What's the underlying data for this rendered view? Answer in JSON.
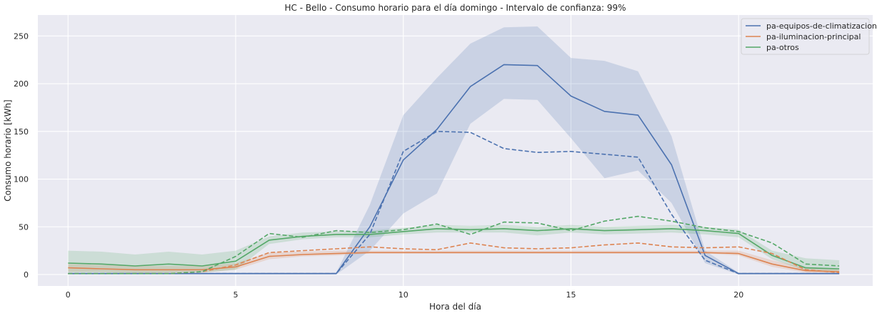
{
  "chart_data": {
    "type": "line",
    "title": "HC - Bello - Consumo horario para el día domingo - Intervalo de confianza: 99%",
    "xlabel": "Hora del día",
    "ylabel": "Consumo horario [kWh]",
    "xlim": [
      -0.9,
      24.0
    ],
    "ylim": [
      -12,
      272
    ],
    "xticks": [
      0,
      5,
      10,
      15,
      20
    ],
    "yticks": [
      0,
      50,
      100,
      150,
      200,
      250
    ],
    "grid": true,
    "legend_position": "top-right",
    "x": [
      0,
      1,
      2,
      3,
      4,
      5,
      6,
      7,
      8,
      9,
      10,
      11,
      12,
      13,
      14,
      15,
      16,
      17,
      18,
      19,
      20,
      21,
      22,
      23
    ],
    "series": [
      {
        "name": "pa-equipos-de-climatizacion",
        "color": "#4c72b0",
        "mean": [
          1,
          1,
          1,
          1,
          1,
          1,
          1,
          1,
          1,
          50,
          120,
          152,
          197,
          220,
          219,
          187,
          171,
          167,
          115,
          20,
          1,
          1,
          1,
          1
        ],
        "lower": [
          0,
          0,
          0,
          0,
          0,
          0,
          0,
          0,
          0,
          25,
          64,
          85,
          158,
          184,
          183,
          143,
          101,
          109,
          75,
          12,
          0,
          0,
          0,
          0
        ],
        "upper": [
          2,
          2,
          2,
          2,
          2,
          2,
          2,
          2,
          2,
          73,
          167,
          206,
          242,
          259,
          260,
          227,
          224,
          213,
          145,
          25,
          2,
          2,
          2,
          2
        ],
        "reference": [
          1,
          1,
          1,
          1,
          1,
          1,
          1,
          1,
          1,
          42,
          129,
          150,
          149,
          132,
          128,
          129,
          126,
          123,
          63,
          15,
          1,
          1,
          1,
          1
        ]
      },
      {
        "name": "pa-iluminacion-principal",
        "color": "#dd8452",
        "mean": [
          7,
          6,
          5,
          5,
          5,
          8,
          19,
          21,
          22,
          23,
          23,
          23,
          23,
          23,
          23,
          23,
          23,
          23,
          23,
          23,
          22,
          11,
          4,
          3
        ],
        "lower": [
          3,
          3,
          2,
          2,
          2,
          5,
          16,
          19,
          20,
          22,
          22,
          22,
          22,
          22,
          22,
          22,
          22,
          22,
          22,
          22,
          20,
          8,
          2,
          1
        ],
        "upper": [
          11,
          10,
          9,
          9,
          9,
          12,
          23,
          24,
          25,
          25,
          25,
          25,
          25,
          25,
          25,
          25,
          25,
          25,
          25,
          25,
          25,
          15,
          7,
          5
        ],
        "reference": [
          1,
          1,
          1,
          1,
          3,
          10,
          23,
          25,
          27,
          29,
          27,
          26,
          33,
          28,
          27,
          28,
          31,
          33,
          29,
          28,
          29,
          22,
          5,
          2
        ]
      },
      {
        "name": "pa-otros",
        "color": "#55a868",
        "mean": [
          12,
          11,
          9,
          11,
          9,
          14,
          36,
          40,
          42,
          42,
          45,
          48,
          47,
          48,
          46,
          48,
          46,
          47,
          48,
          46,
          43,
          20,
          7,
          6
        ],
        "lower": [
          2,
          2,
          1,
          2,
          2,
          5,
          32,
          37,
          39,
          39,
          42,
          44,
          44,
          44,
          41,
          44,
          42,
          43,
          44,
          42,
          39,
          16,
          4,
          3
        ],
        "upper": [
          25,
          24,
          21,
          24,
          21,
          25,
          40,
          44,
          45,
          46,
          49,
          52,
          51,
          52,
          50,
          52,
          50,
          51,
          52,
          50,
          47,
          25,
          17,
          15
        ],
        "reference": [
          1,
          1,
          1,
          1,
          3,
          19,
          43,
          39,
          46,
          44,
          47,
          53,
          42,
          55,
          54,
          46,
          56,
          61,
          56,
          49,
          45,
          33,
          11,
          9
        ]
      }
    ]
  }
}
